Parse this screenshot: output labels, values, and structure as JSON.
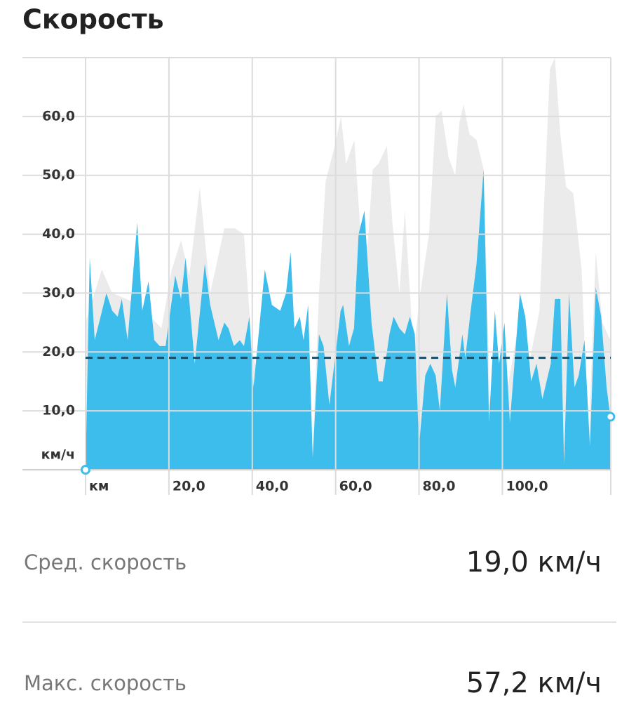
{
  "title": "Скорость",
  "chart_data": {
    "type": "area",
    "xlabel": "км",
    "ylabel": "км/ч",
    "xlim": [
      0,
      126
    ],
    "ylim": [
      0,
      70
    ],
    "xticks": [
      {
        "value": 20,
        "label": "20,0"
      },
      {
        "value": 40,
        "label": "40,0"
      },
      {
        "value": 60,
        "label": "60,0"
      },
      {
        "value": 80,
        "label": "80,0"
      },
      {
        "value": 100,
        "label": "100,0"
      }
    ],
    "yticks": [
      {
        "value": 10,
        "label": "10,0"
      },
      {
        "value": 20,
        "label": "20,0"
      },
      {
        "value": 30,
        "label": "30,0"
      },
      {
        "value": 40,
        "label": "40,0"
      },
      {
        "value": 50,
        "label": "50,0"
      },
      {
        "value": 60,
        "label": "60,0"
      }
    ],
    "grid": true,
    "series": [
      {
        "color": "#ebebeb",
        "x": [
          0,
          3.9,
          6.4,
          13.1,
          18.2,
          20.7,
          22.9,
          24.9,
          27.4,
          29.9,
          33.3,
          35.8,
          38.0,
          40.0,
          43.4,
          45.0,
          47.6,
          49.2,
          51.4,
          54.3,
          56.0,
          57.6,
          59.8,
          61.3,
          62.5,
          64.5,
          66.9,
          68.9,
          70.3,
          72.3,
          73.6,
          75.3,
          76.6,
          78.7,
          80.3,
          82.4,
          84.0,
          85.4,
          87.1,
          88.7,
          89.7,
          90.7,
          92.1,
          93.8,
          95.5,
          97.1,
          98.8,
          101.3,
          103.9,
          106.4,
          108.9,
          111.4,
          112.6,
          113.9,
          115.3,
          117.0,
          119.0,
          120.7,
          122.4,
          124.0,
          125.9
        ],
        "values": [
          25,
          34,
          30,
          28,
          24,
          34,
          39,
          33,
          48,
          30,
          41,
          41,
          40,
          20,
          10,
          8,
          12,
          8,
          4,
          0,
          30,
          49,
          55,
          60,
          52,
          56,
          30,
          51,
          52,
          55,
          42,
          30,
          44,
          20,
          30,
          40,
          60,
          61,
          53,
          50,
          59,
          62,
          57,
          56,
          51,
          10,
          8,
          14,
          25,
          18,
          27,
          68,
          70,
          57,
          48,
          47,
          34,
          5,
          37,
          25,
          22
        ]
      },
      {
        "color": "#3dbdeb",
        "x": [
          0,
          1.0,
          2.2,
          3.6,
          5.0,
          6.4,
          7.7,
          8.7,
          10.1,
          12.4,
          13.6,
          15.1,
          16.5,
          17.8,
          19.2,
          21.5,
          22.9,
          24.0,
          26.2,
          28.6,
          29.9,
          31.9,
          33.3,
          34.3,
          35.6,
          37.0,
          38.0,
          39.3,
          40.3,
          43.0,
          44.7,
          46.7,
          48.1,
          49.2,
          50.1,
          51.4,
          52.3,
          53.4,
          54.5,
          56.0,
          57.1,
          58.5,
          61.2,
          61.8,
          63.2,
          64.4,
          65.5,
          66.9,
          68.6,
          70.3,
          71.3,
          72.9,
          73.9,
          75.3,
          76.6,
          77.8,
          79.0,
          80.0,
          81.5,
          82.7,
          84.0,
          85.0,
          86.7,
          87.9,
          88.7,
          90.4,
          91.1,
          92.4,
          93.8,
          95.5,
          96.8,
          98.2,
          99.2,
          100.5,
          101.8,
          104.2,
          105.5,
          106.9,
          108.2,
          109.6,
          111.6,
          112.6,
          113.9,
          114.8,
          116.0,
          117.3,
          118.3,
          119.7,
          121.0,
          122.4,
          123.7,
          125.0,
          125.9
        ],
        "values": [
          0,
          36,
          22,
          26,
          30,
          27,
          26,
          29,
          22,
          42,
          27,
          32,
          22,
          21,
          21,
          33,
          29,
          36,
          18,
          35,
          28,
          22,
          25,
          24,
          21,
          22,
          21,
          26,
          14,
          34,
          28,
          27,
          30,
          37,
          24,
          26,
          22,
          28,
          2,
          23,
          21,
          11,
          27,
          28,
          21,
          24,
          40,
          44,
          25,
          15,
          15,
          23,
          26,
          24,
          23,
          26,
          23,
          4,
          16,
          18,
          16,
          10,
          30,
          17,
          14,
          23,
          19,
          27,
          35,
          51,
          8,
          27,
          18,
          25,
          8,
          30,
          26,
          15,
          18,
          12,
          18,
          29,
          29,
          1,
          30,
          14,
          16,
          22,
          4,
          31,
          26,
          14,
          9
        ]
      }
    ],
    "average": 19,
    "average_color": "#174f6b"
  },
  "stats": [
    {
      "label": "Сред. скорость",
      "value": "19,0 км/ч"
    },
    {
      "label": "Макс. скорость",
      "value": "57,2 км/ч"
    }
  ]
}
